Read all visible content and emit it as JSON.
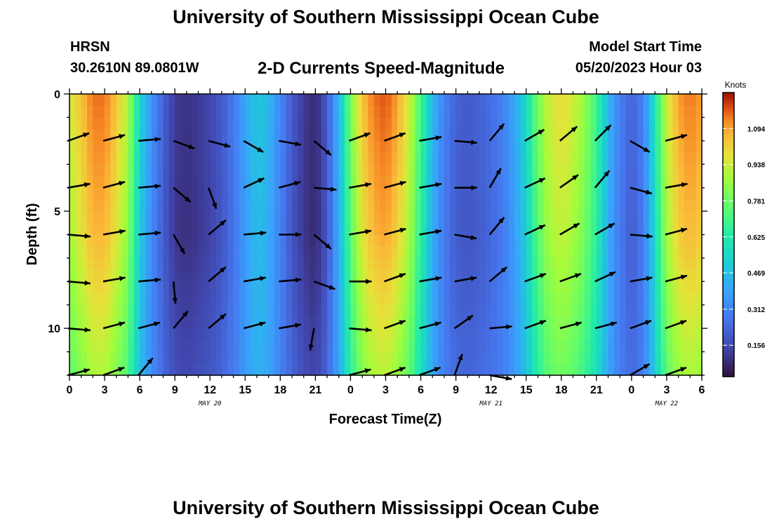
{
  "header": {
    "title": "University of Southern Mississippi Ocean Cube",
    "station": "HRSN",
    "coords": "30.2610N  89.0801W",
    "subtitle": "2-D Currents Speed-Magnitude",
    "model_start_label": "Model Start Time",
    "model_start_value": "05/20/2023 Hour 03"
  },
  "footer": {
    "title": "University of Southern Mississippi Ocean Cube"
  },
  "chart_data": {
    "type": "heatmap",
    "title": "2-D Currents Speed-Magnitude",
    "xlabel": "Forecast Time(Z)",
    "ylabel": "Depth (ft)",
    "x_unit": "hours since 2023-05-20 00Z",
    "xlim": [
      0,
      54
    ],
    "ylim": [
      0,
      12
    ],
    "y_inverted": true,
    "x_ticks": [
      0,
      3,
      6,
      9,
      12,
      15,
      18,
      21,
      24,
      27,
      30,
      33,
      36,
      39,
      42,
      45,
      48,
      51,
      54
    ],
    "x_tick_labels": [
      "0",
      "3",
      "6",
      "9",
      "12",
      "15",
      "18",
      "21",
      "0",
      "3",
      "6",
      "9",
      "12",
      "15",
      "18",
      "21",
      "0",
      "3",
      "6"
    ],
    "y_ticks": [
      0,
      5,
      10
    ],
    "y_tick_labels": [
      "0",
      "5",
      "10"
    ],
    "date_labels": [
      {
        "text": "MAY 20",
        "x": 12
      },
      {
        "text": "MAY 21",
        "x": 36
      },
      {
        "text": "MAY 22",
        "x": 51
      }
    ],
    "colorbar": {
      "label": "Knots",
      "ticks": [
        1.094,
        0.938,
        0.781,
        0.625,
        0.469,
        0.312,
        0.156
      ],
      "tick_labels": [
        "1.094",
        "0.938",
        "0.781",
        "0.625",
        "0.469",
        "0.312",
        "0.156"
      ],
      "min": 0.02,
      "max": 1.25,
      "colormap": "turbo"
    },
    "speed_profile": {
      "hours": [
        0,
        1,
        2,
        3,
        4,
        5,
        6,
        7,
        8,
        9,
        10,
        11,
        12,
        13,
        14,
        15,
        16,
        17,
        18,
        19,
        20,
        21,
        22,
        23,
        24,
        25,
        26,
        27,
        28,
        29,
        30,
        31,
        32,
        33,
        34,
        35,
        36,
        37,
        38,
        39,
        40,
        41,
        42,
        43,
        44,
        45,
        46,
        47,
        48,
        49,
        50,
        51,
        52,
        53,
        54
      ],
      "surface_speed_knots": [
        0.95,
        1.05,
        1.15,
        1.15,
        1.05,
        0.9,
        0.55,
        0.35,
        0.22,
        0.12,
        0.1,
        0.12,
        0.15,
        0.2,
        0.28,
        0.4,
        0.5,
        0.45,
        0.32,
        0.2,
        0.12,
        0.08,
        0.2,
        0.45,
        0.8,
        1.05,
        1.15,
        1.18,
        1.1,
        0.95,
        0.7,
        0.45,
        0.3,
        0.22,
        0.2,
        0.22,
        0.25,
        0.3,
        0.4,
        0.55,
        0.8,
        0.95,
        1.0,
        0.95,
        0.85,
        0.7,
        0.45,
        0.3,
        0.22,
        0.3,
        0.6,
        0.95,
        1.1,
        1.15,
        1.1
      ]
    },
    "current_vectors": {
      "x_hours": [
        1.8,
        4.8,
        7.8,
        10.8,
        13.8,
        16.8,
        19.8,
        22.8,
        25.8,
        28.8,
        31.8,
        34.8,
        37.8,
        40.8,
        43.8,
        46.8,
        49.8,
        52.8
      ],
      "y_depths_ft": [
        2,
        4,
        6,
        8,
        10,
        12
      ],
      "angles_deg": [
        [
          -20,
          -15,
          -5,
          20,
          15,
          30,
          10,
          40,
          -20,
          -20,
          -10,
          5,
          -50,
          -30,
          -40,
          -45,
          30,
          -15
        ],
        [
          -10,
          -15,
          -5,
          40,
          70,
          -25,
          -15,
          5,
          -10,
          -15,
          -10,
          0,
          -60,
          -25,
          -35,
          -50,
          15,
          -10
        ],
        [
          5,
          -10,
          -5,
          60,
          -40,
          -5,
          0,
          40,
          -10,
          -15,
          -10,
          10,
          -50,
          -25,
          -30,
          -30,
          5,
          -15
        ],
        [
          5,
          -10,
          -5,
          85,
          -40,
          -10,
          -5,
          20,
          0,
          -20,
          -10,
          -10,
          -40,
          -20,
          -20,
          -25,
          -10,
          -15
        ],
        [
          5,
          -15,
          -15,
          -50,
          -40,
          -15,
          -10,
          100,
          5,
          -20,
          -15,
          -35,
          -5,
          -20,
          -15,
          -15,
          -20,
          -20
        ],
        [
          -15,
          -20,
          -50,
          0,
          0,
          0,
          0,
          0,
          -15,
          -20,
          -20,
          -70,
          10,
          0,
          0,
          0,
          -30,
          -20
        ]
      ],
      "shown": [
        [
          1,
          1,
          1,
          1,
          1,
          1,
          1,
          1,
          1,
          1,
          1,
          1,
          1,
          1,
          1,
          1,
          1,
          1
        ],
        [
          1,
          1,
          1,
          1,
          1,
          1,
          1,
          1,
          1,
          1,
          1,
          1,
          1,
          1,
          1,
          1,
          1,
          1
        ],
        [
          1,
          1,
          1,
          1,
          1,
          1,
          1,
          1,
          1,
          1,
          1,
          1,
          1,
          1,
          1,
          1,
          1,
          1
        ],
        [
          1,
          1,
          1,
          1,
          1,
          1,
          1,
          1,
          1,
          1,
          1,
          1,
          1,
          1,
          1,
          1,
          1,
          1
        ],
        [
          1,
          1,
          1,
          1,
          1,
          1,
          1,
          1,
          1,
          1,
          1,
          1,
          1,
          1,
          1,
          1,
          1,
          1
        ],
        [
          1,
          1,
          1,
          0,
          0,
          0,
          0,
          0,
          1,
          1,
          1,
          1,
          1,
          0,
          0,
          0,
          1,
          1
        ]
      ]
    }
  }
}
